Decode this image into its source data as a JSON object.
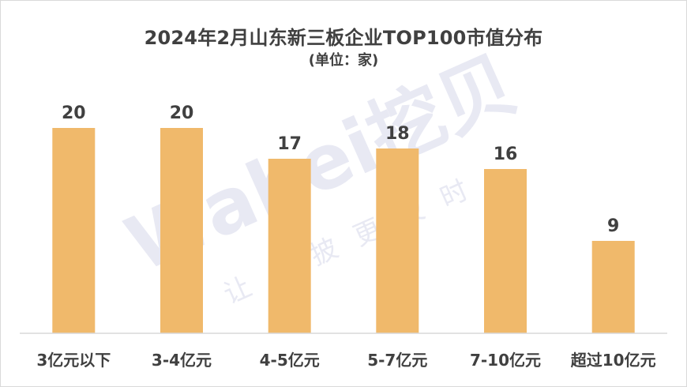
{
  "chart_data": {
    "type": "bar",
    "title": "2024年2月山东新三板企业TOP100市值分布",
    "subtitle": "(单位：家)",
    "categories": [
      "3亿元以下",
      "3-4亿元",
      "4-5亿元",
      "5-7亿元",
      "7-10亿元",
      "超过10亿元"
    ],
    "values": [
      20,
      20,
      17,
      18,
      16,
      9
    ],
    "ylim": [
      0,
      25
    ],
    "grid": false,
    "legend": "none",
    "bar_color": "#f0b96b",
    "axis_color": "#d9d9d9",
    "label_color": "#404040"
  },
  "watermark": {
    "brand": "Wabei挖贝",
    "slogan": "让信披更及时"
  }
}
